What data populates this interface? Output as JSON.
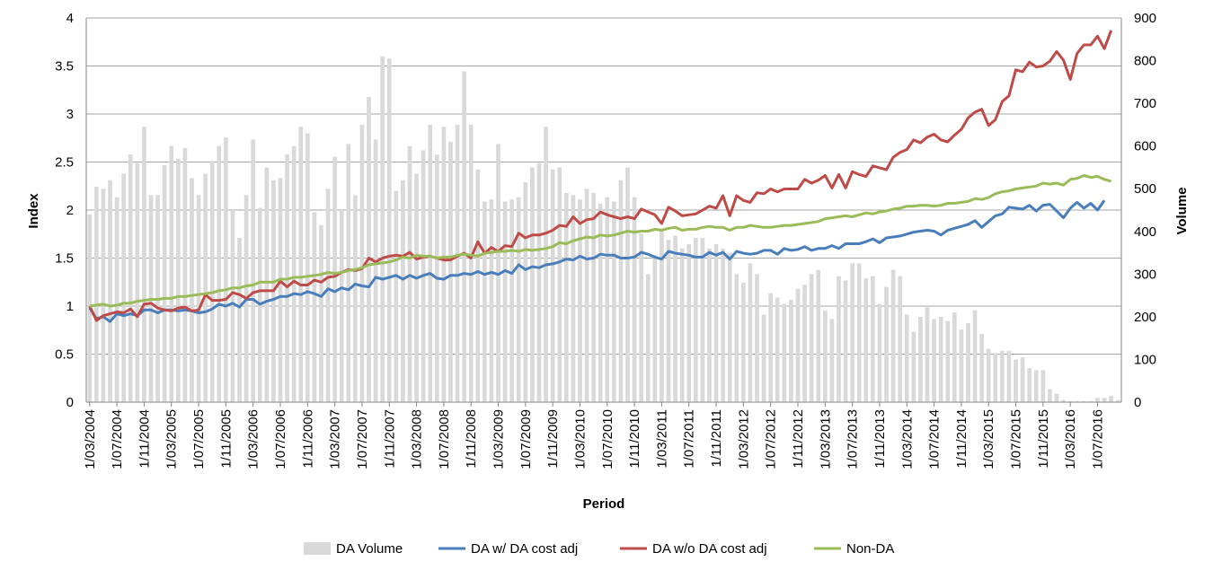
{
  "chart_data": {
    "type": "bar+line",
    "title": "",
    "xlabel": "Period",
    "ylabel": "Index",
    "y2label": "Volume",
    "ylim": [
      0,
      4
    ],
    "y2lim": [
      0,
      900
    ],
    "y_ticks": [
      "0",
      "0.5",
      "1",
      "1.5",
      "2",
      "2.5",
      "3",
      "3.5",
      "4"
    ],
    "y2_ticks": [
      "0",
      "100",
      "200",
      "300",
      "400",
      "500",
      "600",
      "700",
      "800",
      "900"
    ],
    "grid": "horizontal",
    "legend_position": "bottom",
    "x_start": "2004-03",
    "x_tick_labels": [
      "1/03/2004",
      "1/07/2004",
      "1/11/2004",
      "1/03/2005",
      "1/07/2005",
      "1/11/2005",
      "1/03/2006",
      "1/07/2006",
      "1/11/2006",
      "1/03/2007",
      "1/07/2007",
      "1/11/2007",
      "1/03/2008",
      "1/07/2008",
      "1/11/2008",
      "1/03/2009",
      "1/07/2009",
      "1/11/2009",
      "1/03/2010",
      "1/07/2010",
      "1/11/2010",
      "1/03/2011",
      "1/07/2011",
      "1/11/2011",
      "1/03/2012",
      "1/07/2012",
      "1/11/2012",
      "1/03/2013",
      "1/07/2013",
      "1/11/2013",
      "1/03/2014",
      "1/07/2014",
      "1/11/2014",
      "1/03/2015",
      "1/07/2015",
      "1/11/2015",
      "1/03/2016",
      "1/07/2016"
    ],
    "bar_series": {
      "name": "DA Volume",
      "color": "#d9d9d9",
      "axis": "right",
      "values": [
        440,
        505,
        500,
        520,
        480,
        535,
        580,
        560,
        645,
        485,
        485,
        555,
        600,
        570,
        595,
        525,
        485,
        535,
        565,
        600,
        620,
        450,
        385,
        485,
        615,
        455,
        550,
        520,
        525,
        580,
        600,
        645,
        630,
        445,
        415,
        500,
        575,
        450,
        605,
        485,
        650,
        715,
        615,
        810,
        805,
        495,
        520,
        600,
        535,
        590,
        650,
        580,
        645,
        610,
        650,
        775,
        650,
        545,
        470,
        475,
        605,
        470,
        475,
        480,
        515,
        550,
        560,
        645,
        545,
        550,
        490,
        485,
        475,
        500,
        490,
        465,
        480,
        470,
        520,
        550,
        480,
        395,
        300,
        345,
        400,
        380,
        390,
        360,
        370,
        385,
        385,
        360,
        370,
        360,
        350,
        300,
        280,
        325,
        300,
        205,
        255,
        245,
        230,
        240,
        265,
        275,
        300,
        310,
        215,
        195,
        295,
        285,
        325,
        325,
        290,
        295,
        230,
        270,
        310,
        295,
        205,
        165,
        200,
        225,
        195,
        200,
        190,
        210,
        170,
        185,
        215,
        160,
        125,
        115,
        120,
        120,
        100,
        105,
        80,
        75,
        75,
        30,
        20,
        5,
        2,
        2,
        2,
        2,
        10,
        10,
        15,
        5
      ]
    },
    "line_series": [
      {
        "name": "DA w/ DA cost adj",
        "color": "#4a7ebb",
        "axis": "left",
        "values": [
          0.98,
          0.87,
          0.89,
          0.84,
          0.92,
          0.9,
          0.92,
          0.9,
          0.96,
          0.96,
          0.93,
          0.96,
          0.96,
          0.95,
          0.96,
          0.95,
          0.93,
          0.94,
          0.97,
          1.02,
          1.0,
          1.03,
          0.99,
          1.07,
          1.07,
          1.02,
          1.05,
          1.07,
          1.1,
          1.1,
          1.13,
          1.12,
          1.15,
          1.13,
          1.1,
          1.18,
          1.15,
          1.19,
          1.17,
          1.23,
          1.21,
          1.2,
          1.3,
          1.28,
          1.3,
          1.32,
          1.28,
          1.32,
          1.29,
          1.32,
          1.34,
          1.29,
          1.28,
          1.32,
          1.32,
          1.34,
          1.33,
          1.36,
          1.33,
          1.35,
          1.33,
          1.37,
          1.34,
          1.43,
          1.38,
          1.41,
          1.4,
          1.43,
          1.44,
          1.46,
          1.49,
          1.48,
          1.52,
          1.49,
          1.5,
          1.54,
          1.53,
          1.53,
          1.5,
          1.5,
          1.51,
          1.56,
          1.54,
          1.51,
          1.49,
          1.57,
          1.55,
          1.54,
          1.53,
          1.51,
          1.51,
          1.56,
          1.53,
          1.56,
          1.49,
          1.57,
          1.55,
          1.54,
          1.55,
          1.58,
          1.58,
          1.54,
          1.6,
          1.58,
          1.59,
          1.62,
          1.58,
          1.6,
          1.6,
          1.63,
          1.6,
          1.65,
          1.65,
          1.65,
          1.67,
          1.7,
          1.66,
          1.71,
          1.72,
          1.73,
          1.75,
          1.77,
          1.78,
          1.79,
          1.78,
          1.74,
          1.79,
          1.81,
          1.83,
          1.85,
          1.89,
          1.82,
          1.88,
          1.94,
          1.96,
          2.03,
          2.02,
          2.01,
          2.05,
          1.99,
          2.05,
          2.06,
          1.99,
          1.92,
          2.02,
          2.08,
          2.02,
          2.07,
          2.0,
          2.1
        ]
      },
      {
        "name": "DA w/o DA cost adj",
        "color": "#be4b48",
        "axis": "left",
        "values": [
          1.0,
          0.85,
          0.9,
          0.92,
          0.94,
          0.93,
          0.97,
          0.89,
          1.02,
          1.03,
          0.98,
          0.96,
          0.95,
          0.98,
          0.99,
          0.95,
          0.96,
          1.12,
          1.06,
          1.06,
          1.07,
          1.14,
          1.12,
          1.08,
          1.14,
          1.16,
          1.16,
          1.16,
          1.26,
          1.2,
          1.26,
          1.22,
          1.22,
          1.27,
          1.25,
          1.3,
          1.31,
          1.35,
          1.38,
          1.37,
          1.39,
          1.5,
          1.46,
          1.5,
          1.52,
          1.53,
          1.52,
          1.56,
          1.49,
          1.51,
          1.52,
          1.5,
          1.48,
          1.48,
          1.52,
          1.55,
          1.5,
          1.67,
          1.55,
          1.61,
          1.57,
          1.63,
          1.62,
          1.76,
          1.71,
          1.74,
          1.74,
          1.76,
          1.79,
          1.84,
          1.83,
          1.93,
          1.86,
          1.9,
          1.91,
          1.98,
          1.95,
          1.93,
          1.91,
          1.93,
          1.91,
          2.01,
          1.98,
          1.95,
          1.86,
          2.03,
          1.99,
          1.94,
          1.95,
          1.96,
          2.0,
          2.04,
          2.02,
          2.15,
          1.94,
          2.15,
          2.1,
          2.08,
          2.18,
          2.17,
          2.22,
          2.19,
          2.22,
          2.22,
          2.22,
          2.32,
          2.28,
          2.31,
          2.36,
          2.23,
          2.37,
          2.23,
          2.4,
          2.37,
          2.35,
          2.46,
          2.44,
          2.42,
          2.55,
          2.6,
          2.63,
          2.73,
          2.7,
          2.76,
          2.79,
          2.73,
          2.71,
          2.78,
          2.84,
          2.96,
          3.02,
          3.05,
          2.88,
          2.94,
          3.13,
          3.19,
          3.46,
          3.44,
          3.54,
          3.49,
          3.5,
          3.55,
          3.65,
          3.56,
          3.36,
          3.63,
          3.72,
          3.72,
          3.81,
          3.68,
          3.87
        ]
      },
      {
        "name": "Non-DA",
        "color": "#9bbb59",
        "axis": "left",
        "values": [
          1.0,
          1.01,
          1.02,
          1.0,
          1.01,
          1.03,
          1.03,
          1.05,
          1.06,
          1.07,
          1.07,
          1.08,
          1.08,
          1.1,
          1.1,
          1.11,
          1.12,
          1.13,
          1.14,
          1.16,
          1.17,
          1.19,
          1.19,
          1.21,
          1.22,
          1.25,
          1.25,
          1.25,
          1.28,
          1.28,
          1.3,
          1.3,
          1.31,
          1.32,
          1.33,
          1.35,
          1.34,
          1.35,
          1.37,
          1.38,
          1.4,
          1.43,
          1.44,
          1.45,
          1.46,
          1.48,
          1.51,
          1.5,
          1.53,
          1.52,
          1.52,
          1.5,
          1.51,
          1.51,
          1.53,
          1.54,
          1.53,
          1.52,
          1.55,
          1.56,
          1.57,
          1.57,
          1.58,
          1.57,
          1.59,
          1.58,
          1.59,
          1.6,
          1.62,
          1.66,
          1.65,
          1.68,
          1.7,
          1.72,
          1.71,
          1.74,
          1.73,
          1.74,
          1.76,
          1.78,
          1.77,
          1.78,
          1.78,
          1.8,
          1.79,
          1.81,
          1.82,
          1.79,
          1.8,
          1.8,
          1.82,
          1.83,
          1.82,
          1.82,
          1.79,
          1.82,
          1.82,
          1.84,
          1.83,
          1.82,
          1.82,
          1.83,
          1.84,
          1.84,
          1.85,
          1.86,
          1.87,
          1.88,
          1.91,
          1.92,
          1.93,
          1.94,
          1.93,
          1.95,
          1.97,
          1.96,
          1.98,
          1.99,
          2.01,
          2.02,
          2.04,
          2.04,
          2.05,
          2.05,
          2.04,
          2.05,
          2.07,
          2.07,
          2.08,
          2.09,
          2.12,
          2.11,
          2.13,
          2.17,
          2.19,
          2.2,
          2.22,
          2.23,
          2.24,
          2.25,
          2.28,
          2.27,
          2.28,
          2.26,
          2.32,
          2.33,
          2.36,
          2.34,
          2.35,
          2.32,
          2.3
        ]
      }
    ],
    "legend": [
      "DA Volume",
      "DA w/ DA cost adj",
      "DA w/o DA cost adj",
      "Non-DA"
    ]
  }
}
